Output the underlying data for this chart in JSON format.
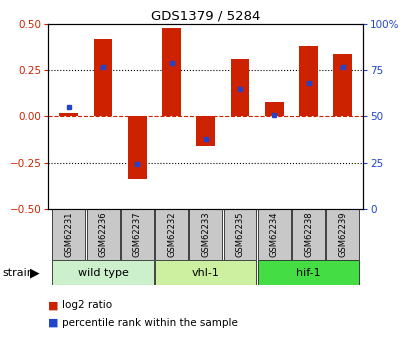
{
  "title": "GDS1379 / 5284",
  "samples": [
    "GSM62231",
    "GSM62236",
    "GSM62237",
    "GSM62232",
    "GSM62233",
    "GSM62235",
    "GSM62234",
    "GSM62238",
    "GSM62239"
  ],
  "log2_ratio": [
    0.02,
    0.42,
    -0.34,
    0.48,
    -0.16,
    0.31,
    0.08,
    0.38,
    0.34
  ],
  "percentile": [
    55,
    77,
    24,
    79,
    38,
    65,
    51,
    68,
    77
  ],
  "groups": [
    {
      "label": "wild type",
      "indices": [
        0,
        1,
        2
      ],
      "color": "#ccf0cc"
    },
    {
      "label": "vhl-1",
      "indices": [
        3,
        4,
        5
      ],
      "color": "#ccf0a0"
    },
    {
      "label": "hif-1",
      "indices": [
        6,
        7,
        8
      ],
      "color": "#44dd44"
    }
  ],
  "ylim": [
    -0.5,
    0.5
  ],
  "yticks_left": [
    -0.5,
    -0.25,
    0.0,
    0.25,
    0.5
  ],
  "yticks_right": [
    0,
    25,
    50,
    75,
    100
  ],
  "dotted_lines": [
    -0.25,
    0.25
  ],
  "bar_color": "#cc2200",
  "blue_color": "#2244cc",
  "bg_color": "#ffffff",
  "plot_bg": "#ffffff",
  "legend_sq_red": "log2 ratio",
  "legend_sq_blue": "percentile rank within the sample",
  "strain_label": "strain",
  "gray_box": "#c8c8c8"
}
